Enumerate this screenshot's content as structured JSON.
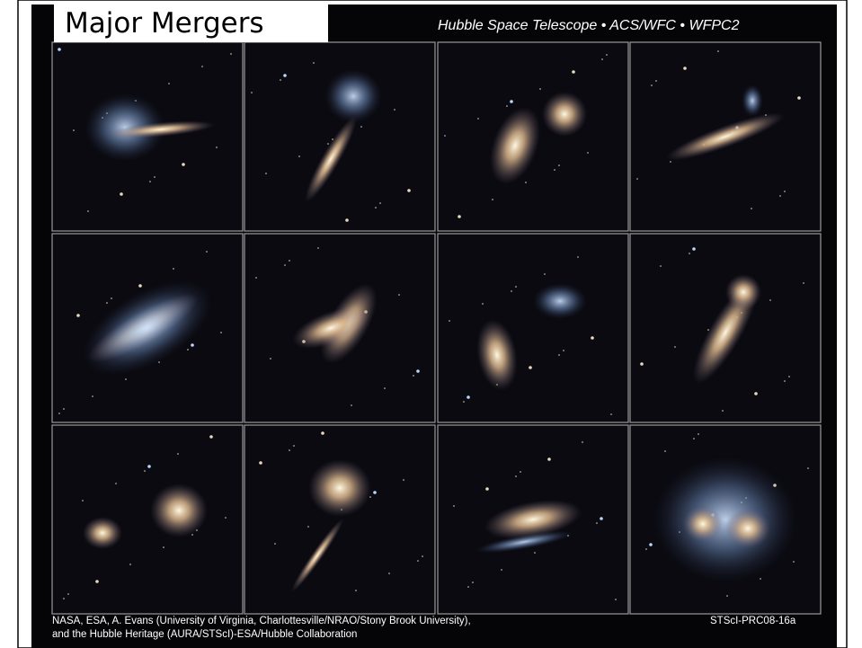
{
  "slide": {
    "title": "Major Mergers",
    "instrument": "Hubble Space Telescope • ACS/WFC • WFPC2",
    "credit": [
      "NASA, ESA, A. Evans (University of Virginia, Charlottesville/NRAO/Stony Brook University),",
      "and the Hubble Heritage (AURA/STScI)-ESA/Hubble Collaboration"
    ],
    "release_id": "STScI-PRC08-16a"
  }
}
